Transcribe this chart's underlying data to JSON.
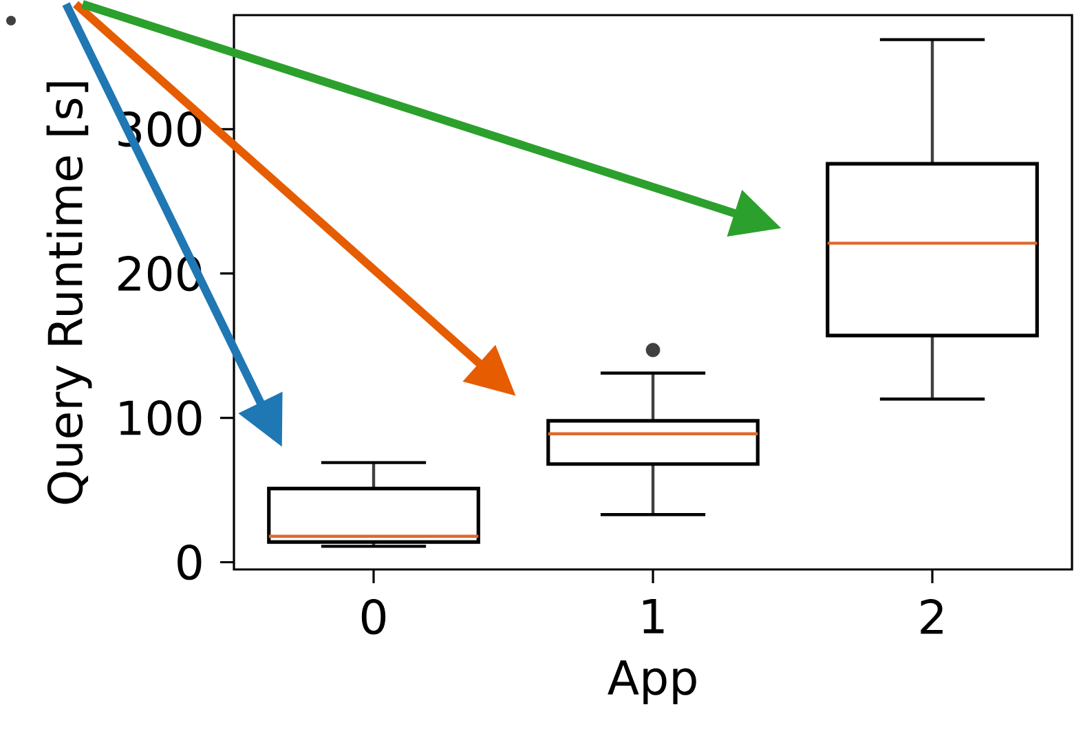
{
  "chart_data": {
    "type": "box",
    "xlabel": "App",
    "ylabel": "Query Runtime [s]",
    "categories": [
      "0",
      "1",
      "2"
    ],
    "boxes": [
      {
        "low": 11,
        "q1": 14,
        "median": 18,
        "q3": 51,
        "high": 69
      },
      {
        "low": 33,
        "q1": 68,
        "median": 89,
        "q3": 98,
        "high": 131,
        "outliers": [
          147
        ]
      },
      {
        "low": 113,
        "q1": 157,
        "median": 221,
        "q3": 276,
        "high": 362
      }
    ],
    "ylim": [
      -5,
      379
    ],
    "yticks": [
      0,
      100,
      200,
      300
    ]
  }
}
